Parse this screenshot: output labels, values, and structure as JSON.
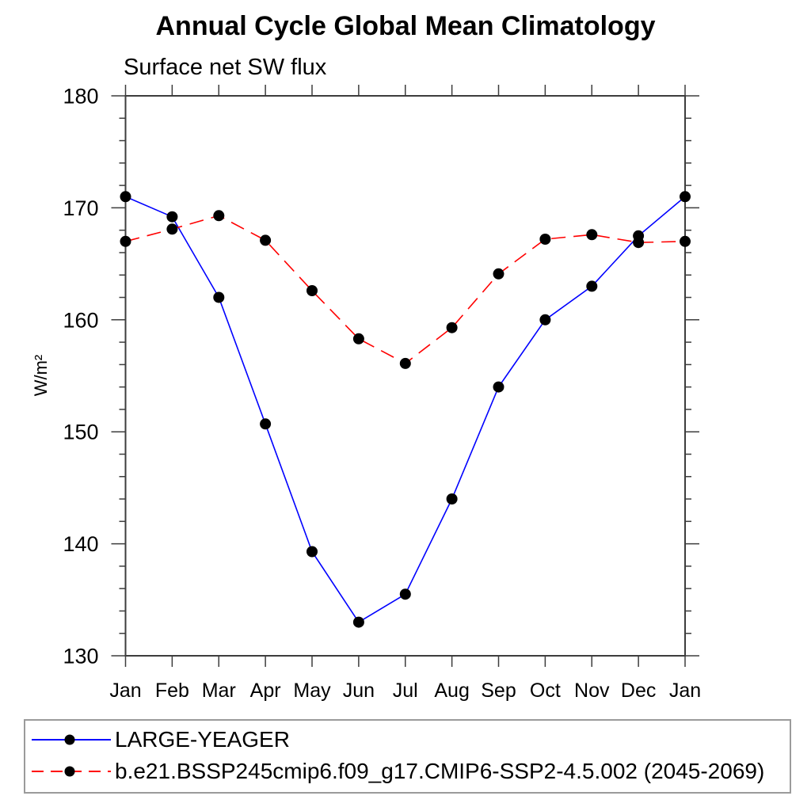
{
  "title": "Annual Cycle Global Mean Climatology",
  "subtitle": "Surface net SW flux",
  "chart_data": {
    "type": "line",
    "x_categories": [
      "Jan",
      "Feb",
      "Mar",
      "Apr",
      "May",
      "Jun",
      "Jul",
      "Aug",
      "Sep",
      "Oct",
      "Nov",
      "Dec",
      "Jan"
    ],
    "ylabel": "W/m²",
    "ylim": [
      130,
      180
    ],
    "y_major_ticks": [
      130,
      140,
      150,
      160,
      170,
      180
    ],
    "y_minor_step": 2,
    "grid": false,
    "legend_position": "bottom",
    "axis_color": "#3d3d3d",
    "marker_color": "#000000",
    "series": [
      {
        "name": "LARGE-YEAGER",
        "color": "#0000ff",
        "style": "solid",
        "marker": "circle",
        "values": [
          171.0,
          169.2,
          162.0,
          150.7,
          139.3,
          133.0,
          135.5,
          144.0,
          154.0,
          160.0,
          163.0,
          167.5,
          171.0
        ]
      },
      {
        "name": "b.e21.BSSP245cmip6.f09_g17.CMIP6-SSP2-4.5.002 (2045-2069)",
        "color": "#ff0000",
        "style": "dashed",
        "marker": "circle",
        "values": [
          167.0,
          168.1,
          169.3,
          167.1,
          162.6,
          158.3,
          156.1,
          159.3,
          164.1,
          167.2,
          167.6,
          166.9,
          167.0
        ]
      }
    ]
  }
}
